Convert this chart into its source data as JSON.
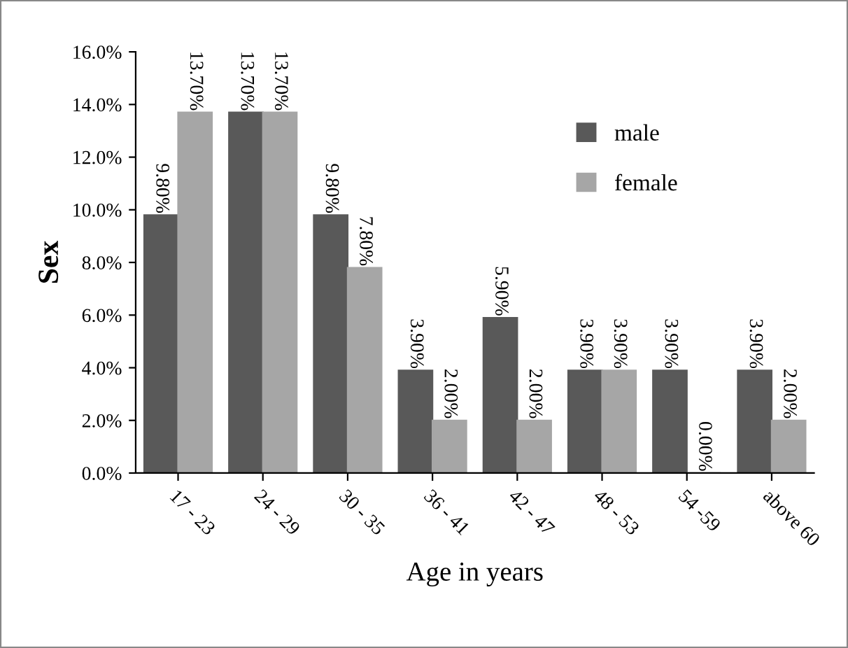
{
  "chart_data": {
    "type": "bar",
    "xlabel": "Age in years",
    "ylabel": "Sex",
    "categories": [
      "17 - 23",
      "24 - 29",
      "30 - 35",
      "36 - 41",
      "42 - 47",
      "48 - 53",
      "54 -59",
      "above 60"
    ],
    "series": [
      {
        "name": "male",
        "color": "#595959",
        "values": [
          9.8,
          13.7,
          9.8,
          3.9,
          5.9,
          3.9,
          3.9,
          3.9
        ],
        "value_labels": [
          "9.80%",
          "13.70%",
          "9.80%",
          "3.90%",
          "5.90%",
          "3.90%",
          "3.90%",
          "3.90%"
        ]
      },
      {
        "name": "female",
        "color": "#a6a6a6",
        "values": [
          13.7,
          13.7,
          7.8,
          2.0,
          2.0,
          3.9,
          0.0,
          2.0
        ],
        "value_labels": [
          "13.70%",
          "13.70%",
          "7.80%",
          "2.00%",
          "2.00%",
          "3.90%",
          "0.00%",
          "2.00%"
        ]
      }
    ],
    "ylim": [
      0,
      16
    ],
    "yticks": [
      {
        "value": 0,
        "label": "0.0%"
      },
      {
        "value": 2,
        "label": "2.0%"
      },
      {
        "value": 4,
        "label": "4.0%"
      },
      {
        "value": 6,
        "label": "6.0%"
      },
      {
        "value": 8,
        "label": "8.0%"
      },
      {
        "value": 10,
        "label": "10.0%"
      },
      {
        "value": 12,
        "label": "12.0%"
      },
      {
        "value": 14,
        "label": "14.0%"
      },
      {
        "value": 16,
        "label": "16.0%"
      }
    ],
    "grid": false,
    "legend": "top right"
  }
}
